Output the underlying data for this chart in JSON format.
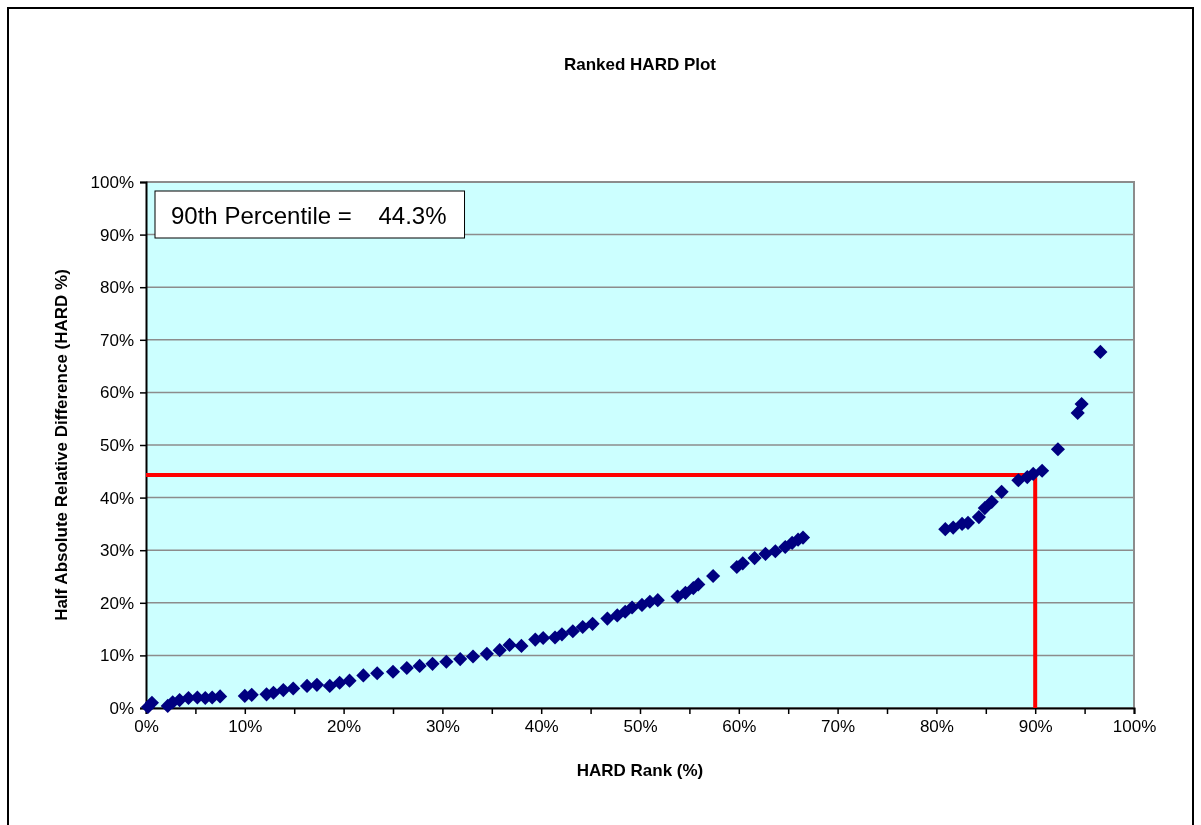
{
  "chart_data": {
    "type": "scatter",
    "title": "Ranked HARD Plot",
    "xlabel": "HARD Rank (%)",
    "ylabel": "Half Absolute Relative Difference (HARD %)",
    "annotations": [
      "90th Percentile =    44.3%"
    ],
    "series": [
      {
        "color": "#000080",
        "x": [
          0.2,
          0.6,
          2.2,
          2.7,
          3.4,
          4.3,
          5.2,
          6.0,
          6.7,
          7.5,
          10.0,
          10.7,
          12.2,
          12.9,
          13.9,
          14.9,
          16.3,
          17.3,
          18.6,
          19.6,
          20.6,
          22.0,
          23.4,
          25.0,
          26.4,
          27.7,
          29.0,
          30.4,
          31.8,
          33.1,
          34.5,
          35.8,
          36.8,
          38.0,
          39.4,
          40.2,
          41.4,
          42.1,
          43.2,
          44.2,
          45.2,
          46.7,
          47.7,
          48.5,
          49.2,
          50.2,
          51.0,
          51.8,
          53.8,
          54.6,
          55.4,
          55.9,
          57.4,
          59.8,
          60.4,
          61.6,
          62.7,
          63.7,
          64.7,
          65.4,
          66.0,
          66.5,
          80.9,
          81.7,
          82.6,
          83.2,
          84.3,
          84.9,
          85.6,
          86.6,
          88.3,
          89.2,
          89.8,
          90.7,
          92.3,
          94.3,
          94.7,
          96.6
        ],
        "values": [
          0.2,
          1.0,
          0.4,
          1.1,
          1.5,
          1.9,
          2.0,
          1.9,
          2.0,
          2.2,
          2.3,
          2.5,
          2.6,
          2.9,
          3.4,
          3.7,
          4.2,
          4.4,
          4.2,
          4.8,
          5.2,
          6.2,
          6.6,
          6.9,
          7.6,
          8.0,
          8.4,
          8.8,
          9.3,
          9.8,
          10.3,
          11.0,
          12.0,
          11.8,
          13.0,
          13.3,
          13.4,
          14.0,
          14.6,
          15.4,
          16.0,
          17.0,
          17.6,
          18.3,
          19.1,
          19.6,
          20.2,
          20.5,
          21.2,
          21.9,
          22.8,
          23.5,
          25.1,
          26.8,
          27.5,
          28.5,
          29.3,
          29.8,
          30.6,
          31.4,
          32.0,
          32.4,
          34.0,
          34.3,
          35.0,
          35.2,
          36.3,
          38.0,
          39.2,
          41.1,
          43.3,
          43.9,
          44.5,
          45.1,
          49.2,
          56.1,
          57.8,
          67.7
        ]
      },
      {
        "type": "line",
        "color": "#ff0000",
        "marker": "none",
        "x": [
          0,
          90,
          90
        ],
        "values": [
          44.3,
          44.3,
          0
        ]
      }
    ],
    "xlim": [
      0,
      100
    ],
    "ylim": [
      0,
      100
    ],
    "xticks": [
      {
        "value": 0,
        "label": "0%"
      },
      {
        "value": 5,
        "label": null
      },
      {
        "value": 10,
        "label": "10%"
      },
      {
        "value": 15,
        "label": null
      },
      {
        "value": 20,
        "label": "20%"
      },
      {
        "value": 25,
        "label": null
      },
      {
        "value": 30,
        "label": "30%"
      },
      {
        "value": 35,
        "label": null
      },
      {
        "value": 40,
        "label": "40%"
      },
      {
        "value": 45,
        "label": null
      },
      {
        "value": 50,
        "label": "50%"
      },
      {
        "value": 55,
        "label": null
      },
      {
        "value": 60,
        "label": "60%"
      },
      {
        "value": 65,
        "label": null
      },
      {
        "value": 70,
        "label": "70%"
      },
      {
        "value": 75,
        "label": null
      },
      {
        "value": 80,
        "label": "80%"
      },
      {
        "value": 85,
        "label": null
      },
      {
        "value": 90,
        "label": "90%"
      },
      {
        "value": 95,
        "label": null
      },
      {
        "value": 100,
        "label": "100%"
      }
    ],
    "yticks": [
      {
        "value": 0,
        "label": "0%"
      },
      {
        "value": 10,
        "label": "10%"
      },
      {
        "value": 20,
        "label": "20%"
      },
      {
        "value": 30,
        "label": "30%"
      },
      {
        "value": 40,
        "label": "40%"
      },
      {
        "value": 50,
        "label": "50%"
      },
      {
        "value": 60,
        "label": "60%"
      },
      {
        "value": 70,
        "label": "70%"
      },
      {
        "value": 80,
        "label": "80%"
      },
      {
        "value": 90,
        "label": "90%"
      },
      {
        "value": 100,
        "label": "100%"
      }
    ],
    "grid": "y",
    "marker": "diamond"
  }
}
